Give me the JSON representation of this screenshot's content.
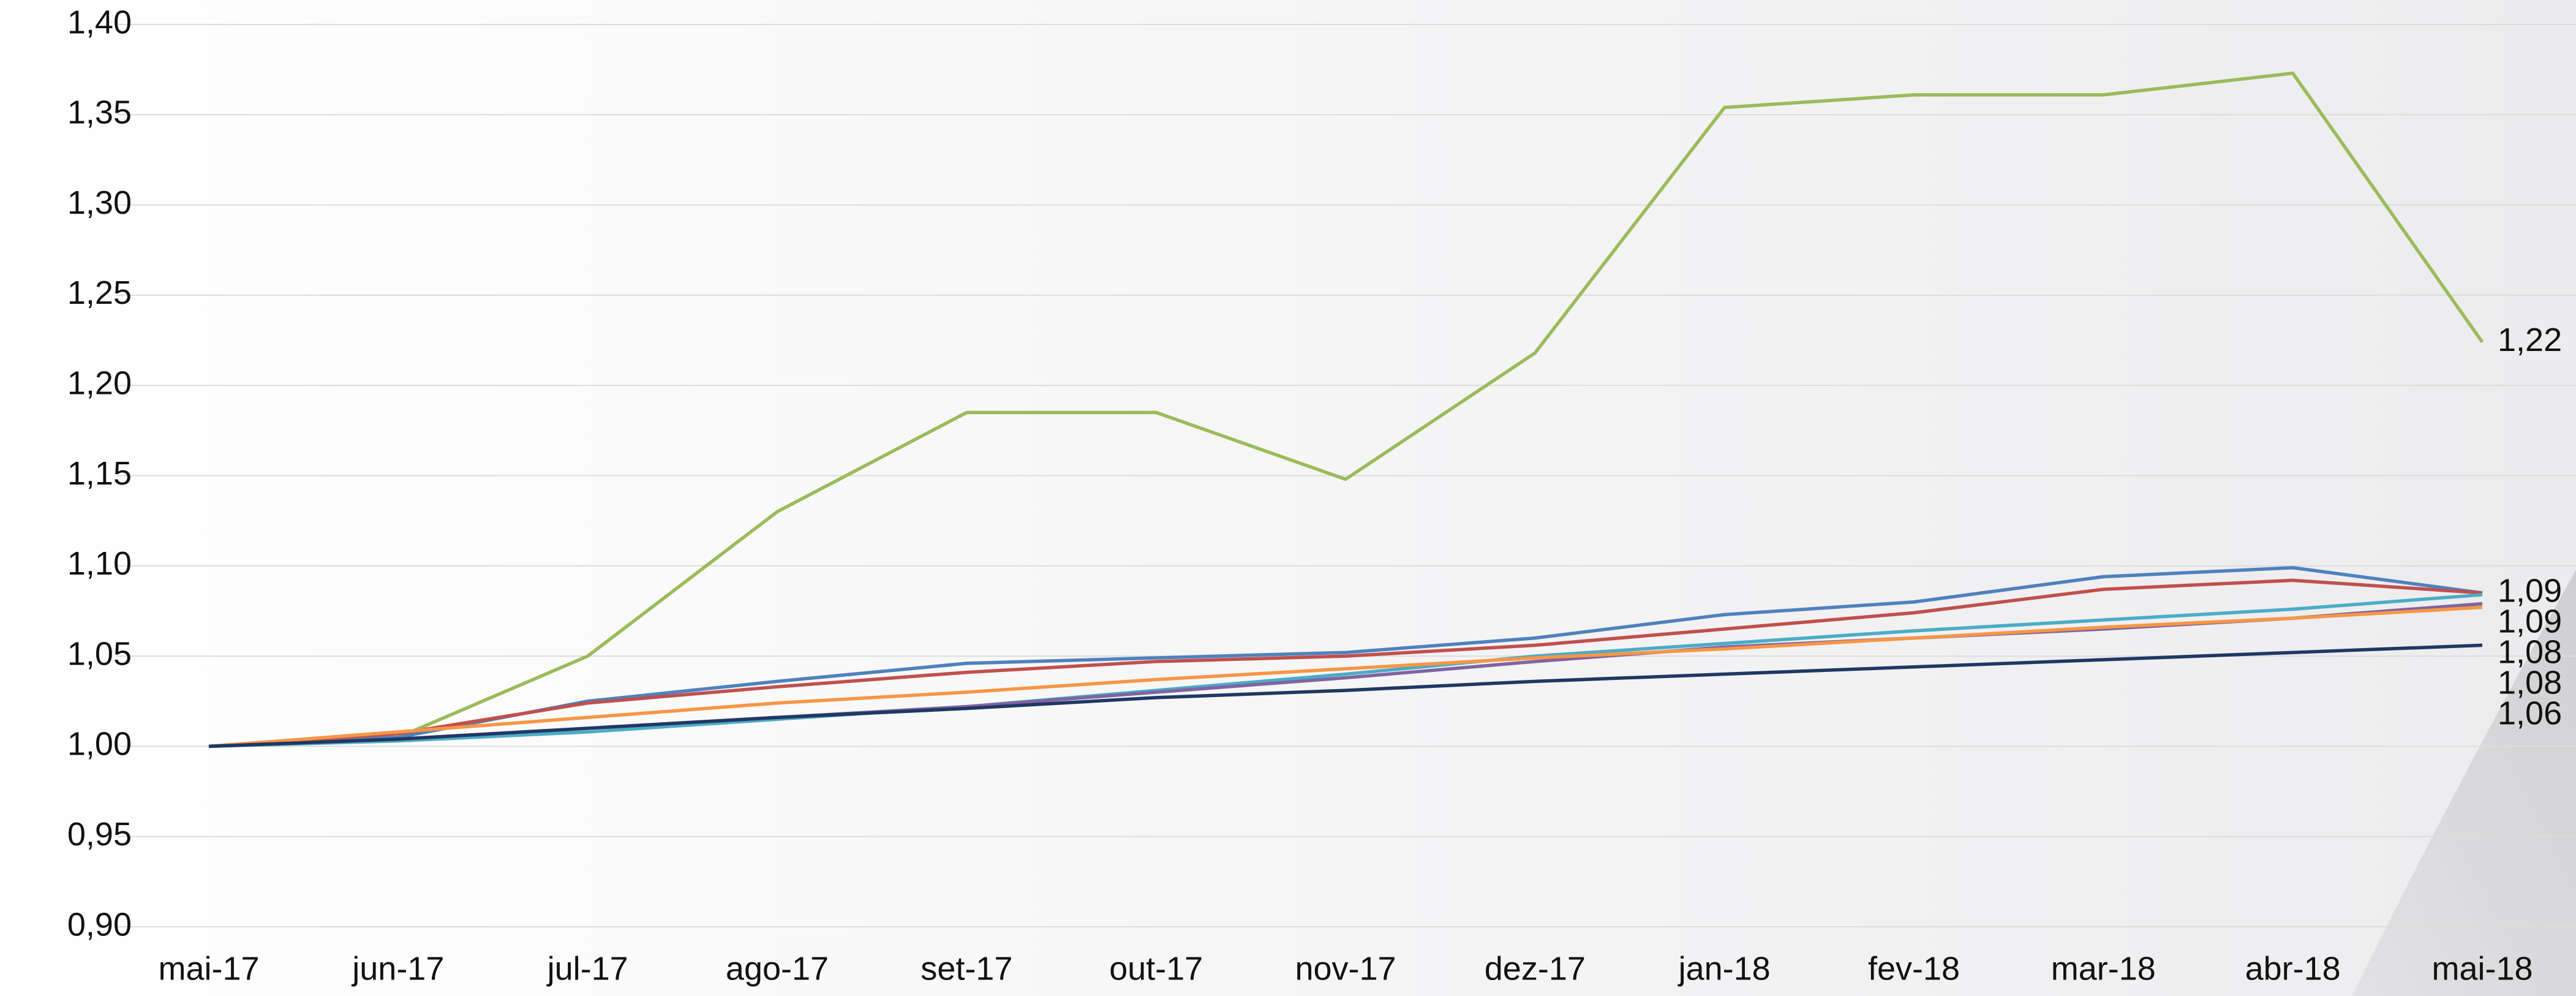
{
  "chart_data": {
    "type": "line",
    "categories": [
      "mai-17",
      "jun-17",
      "jul-17",
      "ago-17",
      "set-17",
      "out-17",
      "nov-17",
      "dez-17",
      "jan-18",
      "fev-18",
      "mar-18",
      "abr-18",
      "mai-18"
    ],
    "ylim": [
      0.9,
      1.4
    ],
    "yticks": [
      {
        "value": 0.9,
        "label": "0,90"
      },
      {
        "value": 0.95,
        "label": "0,95"
      },
      {
        "value": 1.0,
        "label": "1,00"
      },
      {
        "value": 1.05,
        "label": "1,05"
      },
      {
        "value": 1.1,
        "label": "1,10"
      },
      {
        "value": 1.15,
        "label": "1,15"
      },
      {
        "value": 1.2,
        "label": "1,20"
      },
      {
        "value": 1.25,
        "label": "1,25"
      },
      {
        "value": 1.3,
        "label": "1,30"
      },
      {
        "value": 1.35,
        "label": "1,35"
      },
      {
        "value": 1.4,
        "label": "1,40"
      }
    ],
    "grid": true,
    "series": [
      {
        "color": "#9bbb59",
        "values": [
          1.0,
          1.005,
          1.05,
          1.13,
          1.185,
          1.185,
          1.148,
          1.218,
          1.354,
          1.361,
          1.361,
          1.373,
          1.224
        ],
        "value_labels": [
          null,
          null,
          null,
          null,
          null,
          null,
          null,
          null,
          null,
          null,
          null,
          null,
          "1,22"
        ]
      },
      {
        "color": "#4f81bd",
        "values": [
          1.0,
          1.005,
          1.025,
          1.036,
          1.046,
          1.049,
          1.052,
          1.06,
          1.073,
          1.08,
          1.094,
          1.099,
          1.085
        ],
        "value_labels": [
          null,
          null,
          null,
          null,
          null,
          null,
          null,
          null,
          null,
          null,
          null,
          null,
          "1,09"
        ]
      },
      {
        "color": "#c0504d",
        "values": [
          1.0,
          1.007,
          1.024,
          1.033,
          1.041,
          1.047,
          1.05,
          1.056,
          1.065,
          1.074,
          1.087,
          1.092,
          1.085
        ],
        "value_labels": [
          null,
          null,
          null,
          null,
          null,
          null,
          null,
          null,
          null,
          null,
          null,
          null,
          "1,09"
        ]
      },
      {
        "color": "#4bacc6",
        "values": [
          1.0,
          1.003,
          1.008,
          1.015,
          1.022,
          1.031,
          1.04,
          1.05,
          1.057,
          1.064,
          1.07,
          1.076,
          1.084
        ],
        "value_labels": [
          null,
          null,
          null,
          null,
          null,
          null,
          null,
          null,
          null,
          null,
          null,
          null,
          "1,08"
        ]
      },
      {
        "color": "#8064a2",
        "values": [
          1.0,
          1.004,
          1.01,
          1.016,
          1.022,
          1.03,
          1.038,
          1.047,
          1.055,
          1.06,
          1.065,
          1.071,
          1.079
        ],
        "value_labels": [
          null,
          null,
          null,
          null,
          null,
          null,
          null,
          null,
          null,
          null,
          null,
          null,
          "1,08"
        ]
      },
      {
        "color": "#f79646",
        "values": [
          1.0,
          1.008,
          1.016,
          1.024,
          1.03,
          1.037,
          1.043,
          1.049,
          1.054,
          1.06,
          1.066,
          1.071,
          1.077
        ]
      },
      {
        "color": "#1f3864",
        "values": [
          1.0,
          1.004,
          1.01,
          1.016,
          1.021,
          1.027,
          1.031,
          1.036,
          1.04,
          1.044,
          1.048,
          1.052,
          1.056
        ],
        "value_labels": [
          null,
          null,
          null,
          null,
          null,
          null,
          null,
          null,
          null,
          null,
          null,
          null,
          "1,06"
        ]
      }
    ]
  }
}
